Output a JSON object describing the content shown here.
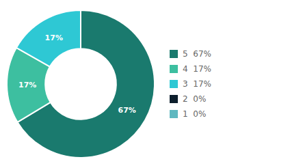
{
  "chart_data": {
    "type": "pie",
    "categories": [
      "5  67%",
      "4  17%",
      "3  17%",
      "2  0%",
      "1  0%"
    ],
    "values": [
      67,
      17,
      17,
      0,
      0
    ],
    "value_labels": [
      "67%",
      "17%",
      "17%",
      null,
      null
    ],
    "colors": [
      "#1a7a6e",
      "#3dbfa0",
      "#2ec8d4",
      "#0d1f2d",
      "#5fb8c0"
    ],
    "data_labels": true,
    "legend": "right"
  }
}
